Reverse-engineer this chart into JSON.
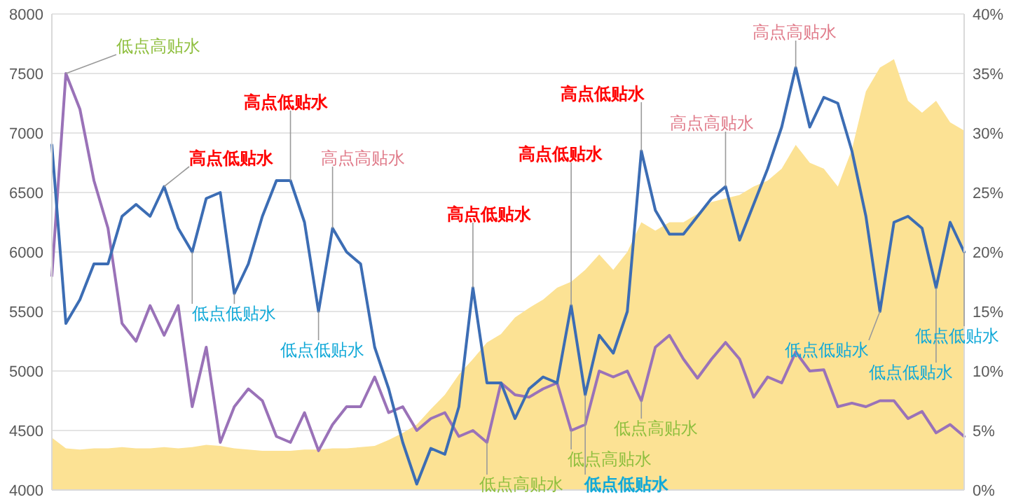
{
  "chart_data": {
    "type": "line",
    "categories": [
      null,
      null,
      null,
      null,
      null,
      null,
      null,
      null,
      null,
      null,
      null,
      null,
      null,
      null,
      null,
      null,
      null,
      null,
      null,
      null,
      null,
      null,
      null,
      null,
      null,
      null,
      null,
      null,
      null,
      null,
      null,
      null,
      null,
      null,
      null,
      null,
      null,
      null,
      null,
      null,
      null,
      null,
      null,
      null,
      null,
      null,
      null,
      null,
      null,
      null,
      null,
      null,
      null,
      null,
      null,
      null,
      null,
      null,
      null,
      null,
      null,
      null,
      null,
      null,
      null,
      null
    ],
    "series": [
      {
        "type": "area",
        "axis": "y2",
        "color": "#fce294",
        "values": [
          4.4,
          3.5,
          3.4,
          3.5,
          3.5,
          3.6,
          3.5,
          3.5,
          3.6,
          3.5,
          3.6,
          3.8,
          3.7,
          3.5,
          3.4,
          3.3,
          3.3,
          3.3,
          3.4,
          3.4,
          3.5,
          3.5,
          3.6,
          3.7,
          4.2,
          4.8,
          5.5,
          6.8,
          8,
          9.7,
          11,
          12.4,
          13.1,
          14.5,
          15.3,
          16,
          17,
          17.5,
          18.5,
          19.8,
          18.5,
          20,
          22.5,
          21.8,
          22.5,
          22.5,
          23.2,
          24.2,
          24.5,
          24.8,
          25.5,
          26,
          27,
          29,
          27.5,
          27,
          25.5,
          28.6,
          33.5,
          35.5,
          36.2,
          32.7,
          31.7,
          32.7,
          30.9,
          30.2
        ]
      },
      {
        "axis": "y2",
        "color": "#9a72b8",
        "values": [
          18,
          35,
          32,
          26,
          22,
          14,
          12.5,
          15.5,
          13,
          15.5,
          7,
          12,
          4,
          7,
          8.5,
          7.5,
          4.5,
          4,
          6.5,
          3.3,
          5.5,
          7,
          7,
          9.5,
          6.5,
          7,
          5,
          6,
          6.5,
          4.5,
          5,
          4,
          9,
          8,
          7.8,
          8.5,
          9,
          5,
          5.5,
          10,
          9.5,
          10,
          7.5,
          12,
          13,
          11,
          9.4,
          11,
          12.4,
          11,
          7.8,
          9.5,
          9,
          11.6,
          10,
          10.1,
          7,
          7.3,
          7,
          7.5,
          7.5,
          6,
          6.6,
          4.8,
          5.5,
          4.5
        ]
      },
      {
        "color": "#3c6db4",
        "values": [
          6900,
          5400,
          5600,
          5900,
          5900,
          6300,
          6400,
          6300,
          6550,
          6200,
          6000,
          6450,
          6500,
          5650,
          5900,
          6300,
          6600,
          6600,
          6250,
          5500,
          6200,
          6000,
          5900,
          5200,
          4850,
          4400,
          4050,
          4350,
          4300,
          4700,
          5700,
          4900,
          4900,
          4600,
          4850,
          4950,
          4900,
          5550,
          4800,
          5300,
          5150,
          5500,
          6850,
          6350,
          6150,
          6150,
          6300,
          6450,
          6550,
          6100,
          6400,
          6700,
          7050,
          7550,
          7050,
          7300,
          7250,
          6850,
          6300,
          5500,
          6250,
          6300,
          6200,
          5700,
          6250,
          6000
        ]
      }
    ],
    "ylim": [
      4000,
      8000
    ],
    "yticks": [
      4000,
      4500,
      5000,
      5500,
      6000,
      6500,
      7000,
      7500,
      8000
    ],
    "y2lim": [
      0,
      40
    ],
    "y2ticks": [
      {
        "value": 0,
        "label": "0%"
      },
      {
        "value": 5,
        "label": "5%"
      },
      {
        "value": 10,
        "label": "10%"
      },
      {
        "value": 15,
        "label": "15%"
      },
      {
        "value": 20,
        "label": "20%"
      },
      {
        "value": 25,
        "label": "25%"
      },
      {
        "value": 30,
        "label": "30%"
      },
      {
        "value": 35,
        "label": "35%"
      },
      {
        "value": 40,
        "label": "40%"
      }
    ],
    "grid": "y",
    "marker": "none",
    "line_style": "solid",
    "annotations": [
      "低点高贴水",
      "高点低贴水",
      "高点低贴水",
      "高点高贴水",
      "低点低贴水",
      "低点低贴水",
      "高点低贴水",
      "高点低贴水",
      "高点低贴水",
      "高点高贴水",
      "高点高贴水",
      "低点高贴水",
      "低点高贴水",
      "低点高贴水",
      "低点低贴水",
      "低点低贴水",
      "低点低贴水",
      "低点低贴水"
    ]
  }
}
